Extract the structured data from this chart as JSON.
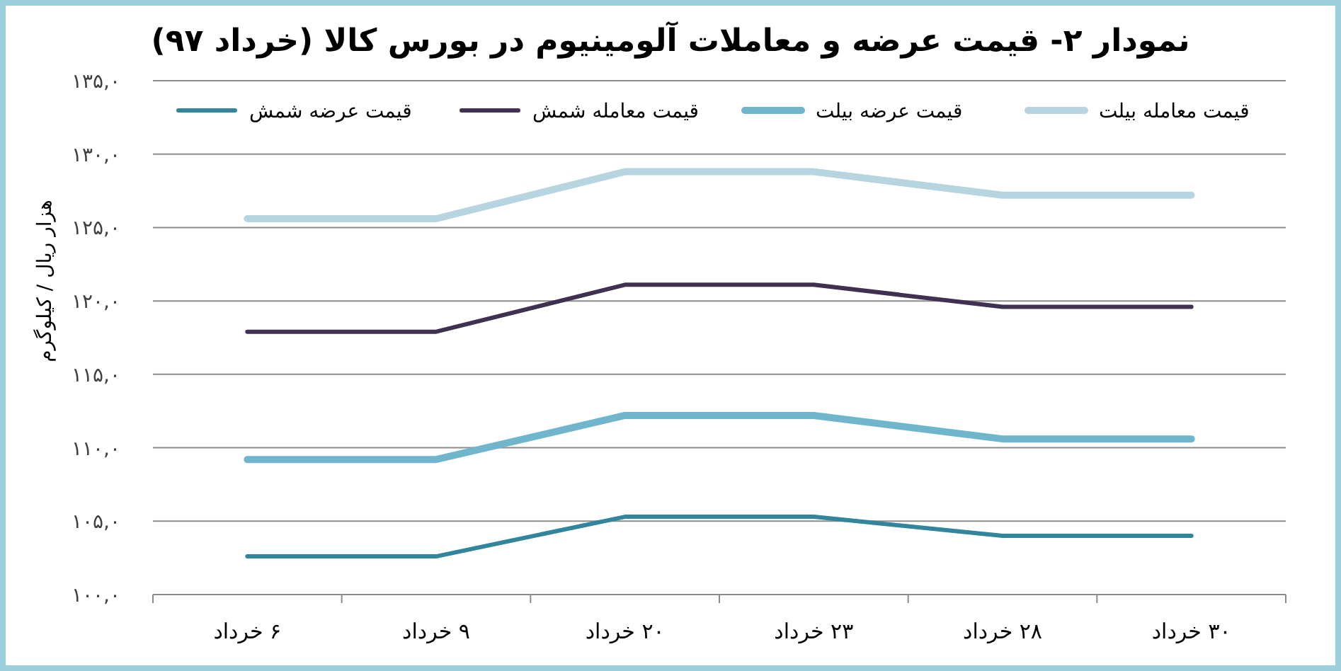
{
  "chart_data": {
    "type": "line",
    "title": "نمودار ۲-  قیمت عرضه و معاملات آلومینیوم در بورس کالا (خرداد ۹۷)",
    "ylabel": "هزار ریال / کیلوگرم",
    "categories": [
      "۶ خرداد",
      "۹ خرداد",
      "۲۰ خرداد",
      "۲۳ خرداد",
      "۲۸ خرداد",
      "۳۰ خرداد"
    ],
    "series": [
      {
        "name": "قیمت عرضه شمش",
        "color": "#31859c",
        "values": [
          102.6,
          102.6,
          105.3,
          105.3,
          104.0,
          104.0
        ]
      },
      {
        "name": "قیمت معامله شمش",
        "color": "#403152",
        "values": [
          117.9,
          117.9,
          121.1,
          121.1,
          119.6,
          119.6
        ]
      },
      {
        "name": "قیمت عرضه بیلت",
        "color": "#6fb6cc",
        "values": [
          109.2,
          109.2,
          112.2,
          112.2,
          110.6,
          110.6
        ]
      },
      {
        "name": "قیمت معامله بیلت",
        "color": "#b7d5e0",
        "values": [
          125.6,
          125.6,
          128.8,
          128.8,
          127.2,
          127.2
        ]
      }
    ],
    "ylim": [
      100,
      135
    ],
    "yticks": [
      {
        "value": 100,
        "label": "۱۰۰,۰"
      },
      {
        "value": 105,
        "label": "۱۰۵,۰"
      },
      {
        "value": 110,
        "label": "۱۱۰,۰"
      },
      {
        "value": 115,
        "label": "۱۱۵,۰"
      },
      {
        "value": 120,
        "label": "۱۲۰,۰"
      },
      {
        "value": 125,
        "label": "۱۲۵,۰"
      },
      {
        "value": 130,
        "label": "۱۳۰,۰"
      },
      {
        "value": 135,
        "label": "۱۳۵,۰"
      }
    ],
    "grid": "y",
    "legend": "top",
    "marker": "none",
    "line_style": "solid"
  }
}
